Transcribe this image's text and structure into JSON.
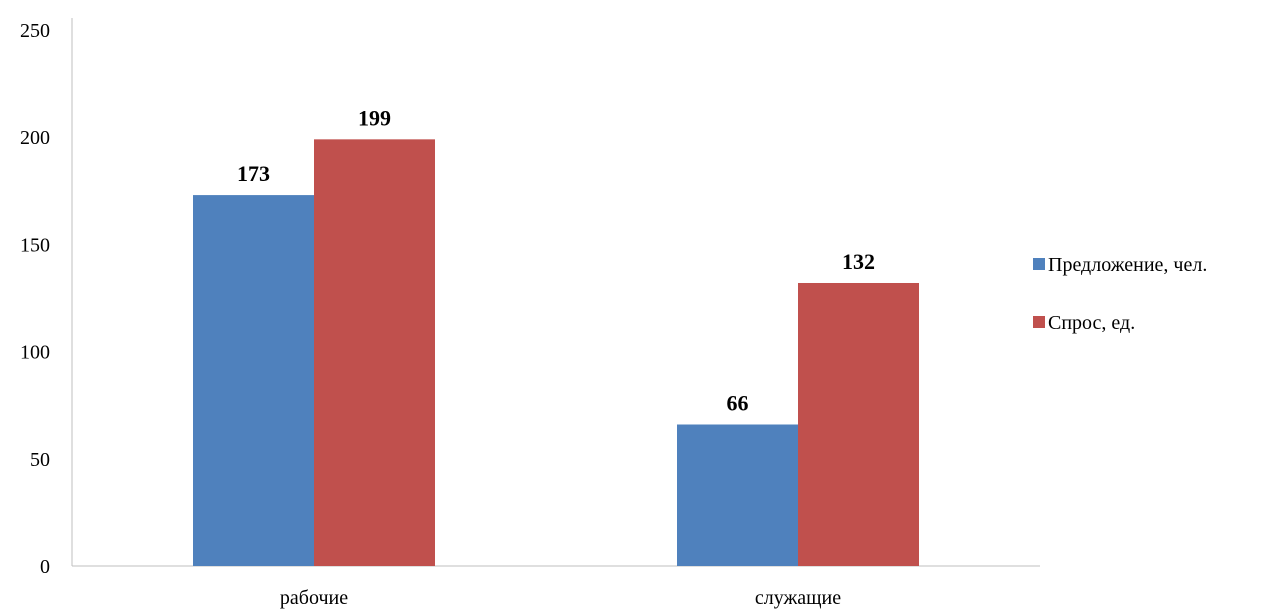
{
  "chart_data": {
    "type": "bar",
    "title": "",
    "xlabel": "",
    "ylabel": "",
    "categories": [
      "рабочие",
      "служащие"
    ],
    "series": [
      {
        "name": "Предложение, чел.",
        "values": [
          173,
          66
        ],
        "color": "#4F81BD"
      },
      {
        "name": "Спрос, ед.",
        "values": [
          199,
          132
        ],
        "color": "#C0504D"
      }
    ],
    "ylim": [
      0,
      250
    ],
    "y_ticks": [
      0,
      50,
      100,
      150,
      200,
      250
    ],
    "grid": false,
    "legend_position": "right",
    "data_labels": true
  }
}
